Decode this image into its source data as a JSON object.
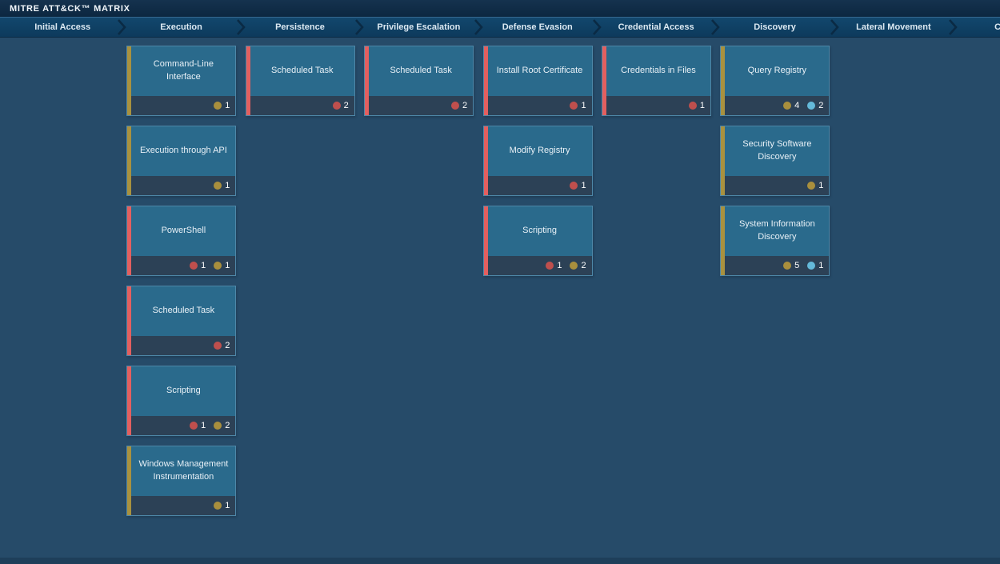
{
  "header": {
    "title": "MITRE ATT&CK™ MATRIX"
  },
  "colors": {
    "page_bg": "#264b69",
    "header_bg": "#0d2a43",
    "tab_top": "#12476d",
    "tab_bottom": "#0d3a5c",
    "card_body": "#2a6a8c",
    "card_footer": "#2c4156",
    "stripe_red": "#e35f5f",
    "stripe_yellow": "#a8913f",
    "dot_red": "#bf4f4d",
    "dot_yellow": "#a98f3d",
    "dot_blue": "#64b9d9"
  },
  "matrix": {
    "columns": [
      {
        "tactic": "Initial Access",
        "name": "initial-access",
        "techniques": []
      },
      {
        "tactic": "Execution",
        "name": "execution",
        "techniques": [
          {
            "label": "Command-Line Interface",
            "severity": "yellow",
            "badges": [
              {
                "color": "yellow",
                "count": 1
              }
            ]
          },
          {
            "label": "Execution through API",
            "severity": "yellow",
            "badges": [
              {
                "color": "yellow",
                "count": 1
              }
            ]
          },
          {
            "label": "PowerShell",
            "severity": "red",
            "badges": [
              {
                "color": "red",
                "count": 1
              },
              {
                "color": "yellow",
                "count": 1
              }
            ]
          },
          {
            "label": "Scheduled Task",
            "severity": "red",
            "badges": [
              {
                "color": "red",
                "count": 2
              }
            ]
          },
          {
            "label": "Scripting",
            "severity": "red",
            "badges": [
              {
                "color": "red",
                "count": 1
              },
              {
                "color": "yellow",
                "count": 2
              }
            ]
          },
          {
            "label": "Windows Management Instrumentation",
            "severity": "yellow",
            "badges": [
              {
                "color": "yellow",
                "count": 1
              }
            ]
          }
        ]
      },
      {
        "tactic": "Persistence",
        "name": "persistence",
        "techniques": [
          {
            "label": "Scheduled Task",
            "severity": "red",
            "badges": [
              {
                "color": "red",
                "count": 2
              }
            ]
          }
        ]
      },
      {
        "tactic": "Privilege Escalation",
        "name": "privilege-escalation",
        "techniques": [
          {
            "label": "Scheduled Task",
            "severity": "red",
            "badges": [
              {
                "color": "red",
                "count": 2
              }
            ]
          }
        ]
      },
      {
        "tactic": "Defense Evasion",
        "name": "defense-evasion",
        "techniques": [
          {
            "label": "Install Root Certificate",
            "severity": "red",
            "badges": [
              {
                "color": "red",
                "count": 1
              }
            ]
          },
          {
            "label": "Modify Registry",
            "severity": "red",
            "badges": [
              {
                "color": "red",
                "count": 1
              }
            ]
          },
          {
            "label": "Scripting",
            "severity": "red",
            "badges": [
              {
                "color": "red",
                "count": 1
              },
              {
                "color": "yellow",
                "count": 2
              }
            ]
          }
        ]
      },
      {
        "tactic": "Credential Access",
        "name": "credential-access",
        "techniques": [
          {
            "label": "Credentials in Files",
            "severity": "red",
            "badges": [
              {
                "color": "red",
                "count": 1
              }
            ]
          }
        ]
      },
      {
        "tactic": "Discovery",
        "name": "discovery",
        "techniques": [
          {
            "label": "Query Registry",
            "severity": "yellow",
            "badges": [
              {
                "color": "yellow",
                "count": 4
              },
              {
                "color": "blue",
                "count": 2
              }
            ]
          },
          {
            "label": "Security Software Discovery",
            "severity": "yellow",
            "badges": [
              {
                "color": "yellow",
                "count": 1
              }
            ]
          },
          {
            "label": "System Information Discovery",
            "severity": "yellow",
            "badges": [
              {
                "color": "yellow",
                "count": 5
              },
              {
                "color": "blue",
                "count": 1
              }
            ]
          }
        ]
      },
      {
        "tactic": "Lateral Movement",
        "name": "lateral-movement",
        "techniques": []
      },
      {
        "tactic": "C",
        "name": "command-and-control",
        "techniques": []
      }
    ]
  }
}
